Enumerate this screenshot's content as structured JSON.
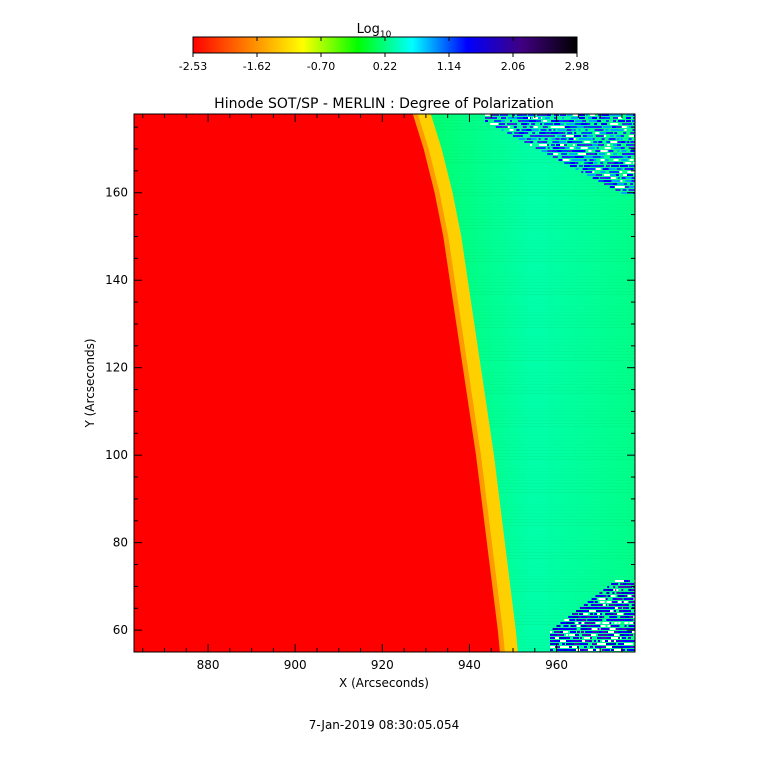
{
  "chart_data": {
    "type": "heatmap",
    "title": "Hinode SOT/SP - MERLIN : Degree of Polarization",
    "xlabel": "X (Arcseconds)",
    "ylabel": "Y (Arcseconds)",
    "xlim": [
      863,
      978
    ],
    "ylim": [
      55,
      178
    ],
    "x_ticks": [
      880,
      900,
      920,
      940,
      960
    ],
    "y_ticks": [
      60,
      80,
      100,
      120,
      140,
      160
    ],
    "grid": false,
    "colorbar": {
      "label": "Log",
      "label_subscript": "10",
      "min": -2.53,
      "max": 2.98,
      "ticks": [
        "-2.53",
        "-1.62",
        "-0.70",
        "0.22",
        "1.14",
        "2.06",
        "2.98"
      ],
      "colormap": "rainbow (red to black)",
      "colors": [
        "#ff0000",
        "#ff8000",
        "#ffff00",
        "#00ff00",
        "#00ffff",
        "#0000ff",
        "#400080",
        "#000000"
      ]
    },
    "limb_profile": [
      {
        "y": 178,
        "x_limb": 927
      },
      {
        "y": 170,
        "x_limb": 929.5
      },
      {
        "y": 160,
        "x_limb": 932
      },
      {
        "y": 150,
        "x_limb": 934
      },
      {
        "y": 140,
        "x_limb": 935.5
      },
      {
        "y": 120,
        "x_limb": 938.5
      },
      {
        "y": 100,
        "x_limb": 941.5
      },
      {
        "y": 80,
        "x_limb": 944
      },
      {
        "y": 60,
        "x_limb": 946.5
      },
      {
        "y": 55,
        "x_limb": 947
      }
    ],
    "regions": [
      {
        "name": "disk",
        "log10_value": -2.53
      },
      {
        "name": "limb-band",
        "log10_value": -1.4
      },
      {
        "name": "off-limb",
        "log10_value": 0.0
      },
      {
        "name": "noisy-corner-top-right",
        "log10_value": 1.8
      },
      {
        "name": "noisy-corner-bottom-right",
        "log10_value": 1.9
      }
    ],
    "timestamp": "7-Jan-2019 08:30:05.054"
  }
}
